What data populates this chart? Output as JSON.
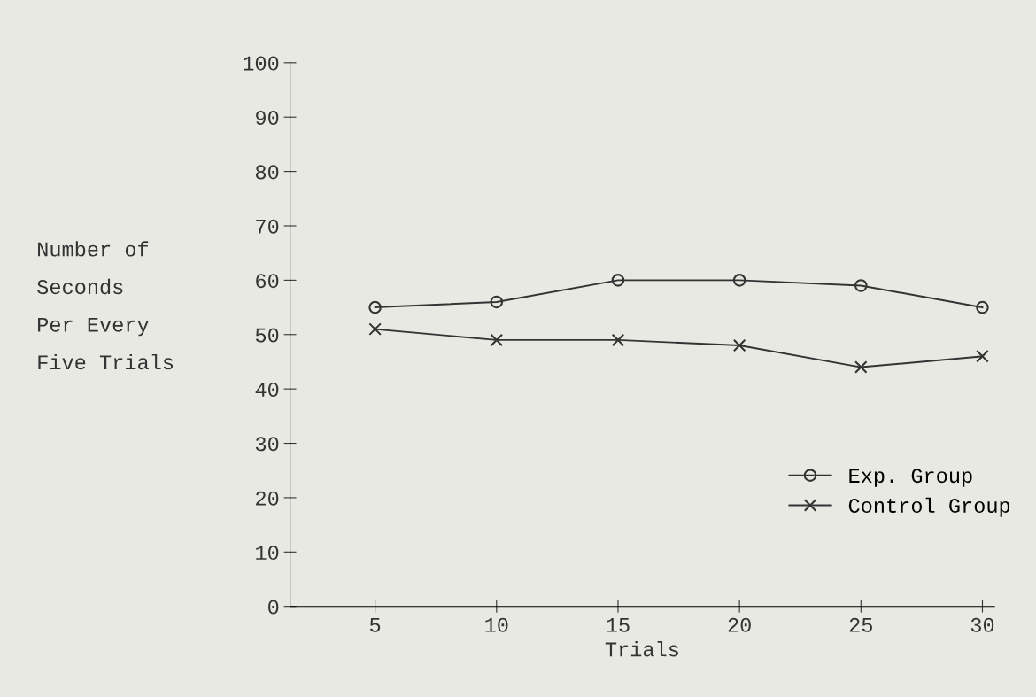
{
  "chart_data": {
    "type": "line",
    "xlabel": "Trials",
    "ylabel": "Number of\nSeconds\nPer Every\nFive Trials",
    "x": [
      5,
      10,
      15,
      20,
      25,
      30
    ],
    "series": [
      {
        "name": "Exp. Group",
        "color": "#333333",
        "marker": "circle",
        "values": [
          55,
          56,
          60,
          60,
          59,
          55
        ]
      },
      {
        "name": "Control Group",
        "color": "#333333",
        "marker": "cross",
        "values": [
          51,
          49,
          49,
          48,
          44,
          46
        ]
      }
    ],
    "xlim": [
      1.5,
      30.5
    ],
    "ylim": [
      0,
      100
    ],
    "xticks": [
      5,
      10,
      15,
      20,
      25,
      30
    ],
    "yticks": [
      0,
      10,
      20,
      30,
      40,
      50,
      60,
      70,
      80,
      90,
      100
    ],
    "grid": false,
    "legend": "bottom right",
    "line_style": "solid"
  }
}
